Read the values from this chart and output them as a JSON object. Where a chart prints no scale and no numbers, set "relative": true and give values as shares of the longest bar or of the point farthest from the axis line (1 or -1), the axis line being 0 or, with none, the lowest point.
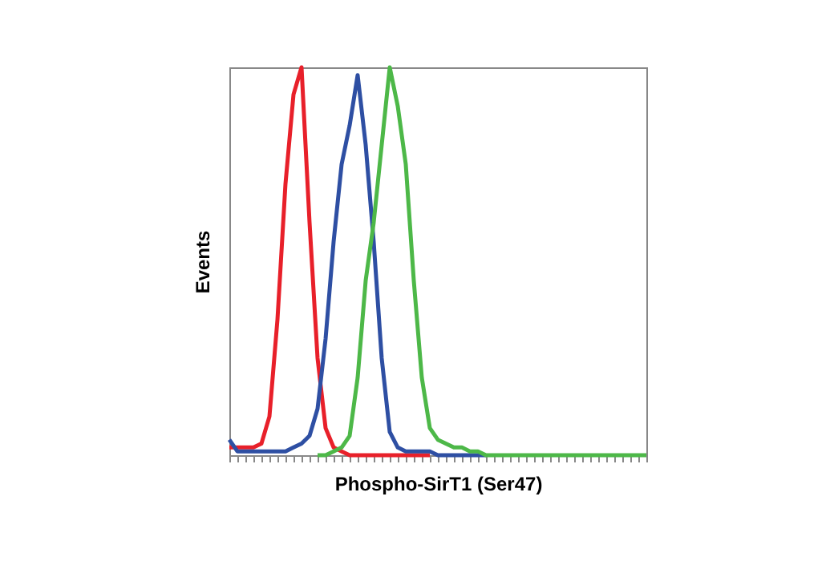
{
  "chart_data": {
    "type": "line",
    "xlabel": "Phospho-SirT1 (Ser47)",
    "ylabel": "Events",
    "relative": true,
    "grid": false,
    "marker": "none",
    "line_style": "solid",
    "categories": [
      null,
      null,
      null,
      null,
      null,
      null,
      null,
      null,
      null,
      null,
      null,
      null,
      null,
      null,
      null,
      null,
      null,
      null,
      null,
      null,
      null,
      null,
      null,
      null,
      null,
      null,
      null,
      null,
      null,
      null,
      null,
      null,
      null,
      null,
      null,
      null,
      null,
      null,
      null,
      null,
      null,
      null,
      null,
      null,
      null,
      null,
      null,
      null,
      null,
      null,
      null,
      null,
      null
    ],
    "series": [
      {
        "color": "#e8202a",
        "values": [
          0.02,
          0.02,
          0.02,
          0.02,
          0.03,
          0.1,
          0.35,
          0.7,
          0.93,
          1,
          0.6,
          0.25,
          0.07,
          0.02,
          0.01,
          0,
          0,
          0,
          0,
          0,
          0,
          0,
          0,
          0,
          0,
          0,
          null,
          null,
          null,
          null,
          null,
          null,
          null,
          null,
          null,
          null,
          null,
          null,
          null,
          null,
          null,
          null,
          null,
          null,
          null,
          null,
          null,
          null,
          null,
          null,
          null,
          null,
          null
        ]
      },
      {
        "color": "#2e4fa3",
        "values": [
          0.04,
          0.01,
          0.01,
          0.01,
          0.01,
          0.01,
          0.01,
          0.01,
          0.02,
          0.03,
          0.05,
          0.12,
          0.3,
          0.55,
          0.75,
          0.85,
          0.98,
          0.8,
          0.55,
          0.25,
          0.06,
          0.02,
          0.01,
          0.01,
          0.01,
          0.01,
          0,
          0,
          0,
          0,
          0,
          0,
          0,
          null,
          null,
          null,
          null,
          null,
          null,
          null,
          null,
          null,
          null,
          null,
          null,
          null,
          null,
          null,
          null,
          null,
          null,
          null,
          null
        ]
      },
      {
        "color": "#4db848",
        "values": [
          null,
          null,
          null,
          null,
          null,
          null,
          null,
          null,
          null,
          null,
          null,
          0,
          0,
          0.01,
          0.02,
          0.05,
          0.2,
          0.45,
          0.6,
          0.8,
          1,
          0.9,
          0.75,
          0.45,
          0.2,
          0.07,
          0.04,
          0.03,
          0.02,
          0.02,
          0.01,
          0.01,
          0,
          0,
          0,
          0,
          0,
          0,
          0,
          0,
          0,
          0,
          0,
          0,
          0,
          0,
          0,
          0,
          0,
          0,
          0,
          0,
          0
        ]
      }
    ]
  }
}
